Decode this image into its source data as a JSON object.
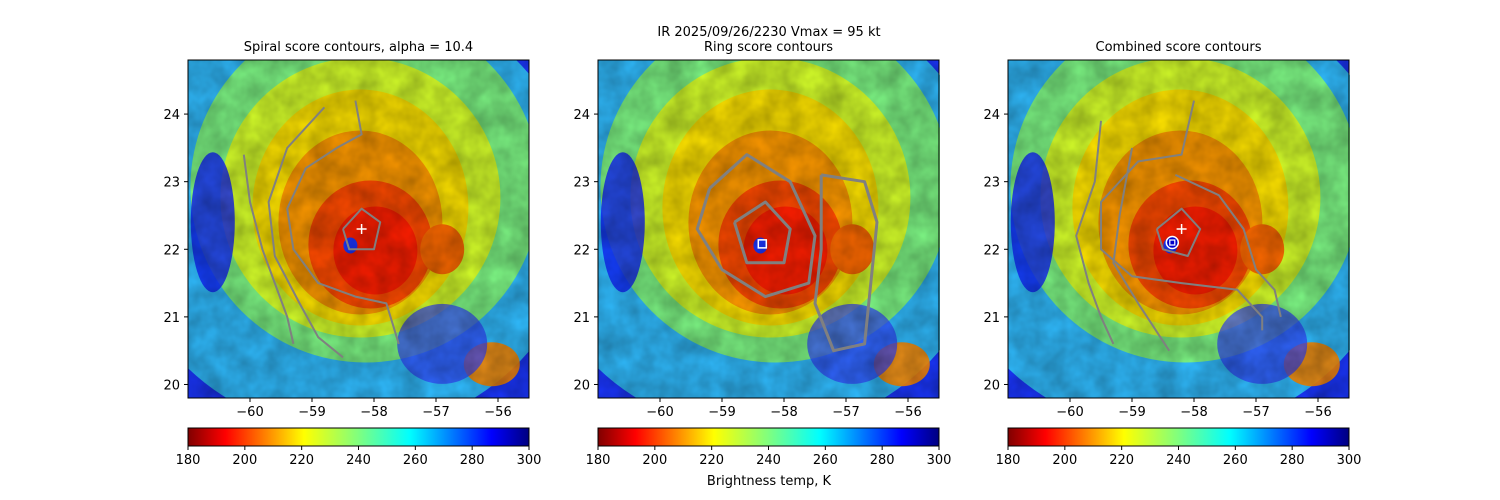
{
  "suptitle_line1": "IR  2025/09/26/2230    Vmax = 95 kt",
  "colorbar_label": "Brightness temp, K",
  "colors": {
    "contour": "#808080",
    "marker": "#ffffff",
    "circle_marker": "#ffffff",
    "circle_fill": "#0000cc"
  },
  "chart_data": [
    {
      "type": "heatmap",
      "title": "Spiral score contours, alpha = 10.4",
      "xlim": [
        -61.0,
        -55.5
      ],
      "ylim": [
        19.8,
        24.8
      ],
      "xticks": [
        -60,
        -59,
        -58,
        -57,
        -56
      ],
      "yticks": [
        20,
        21,
        22,
        23,
        24
      ],
      "xlabel": "",
      "ylabel": "",
      "colormap": "jet_r",
      "clim": [
        180,
        300
      ],
      "colorbar_ticks": [
        180,
        200,
        220,
        240,
        260,
        280,
        300
      ],
      "first_guess": {
        "lon": -58.2,
        "lat": 22.3,
        "marker": "+"
      },
      "contours": [
        [
          [
            -58.8,
            24.1
          ],
          [
            -59.4,
            23.5
          ],
          [
            -59.7,
            22.7
          ],
          [
            -59.6,
            21.9
          ],
          [
            -59.2,
            21.2
          ],
          [
            -58.9,
            20.7
          ],
          [
            -58.5,
            20.4
          ]
        ],
        [
          [
            -58.3,
            24.2
          ],
          [
            -58.2,
            23.7
          ],
          [
            -58.6,
            23.5
          ],
          [
            -59.1,
            23.2
          ],
          [
            -59.4,
            22.6
          ],
          [
            -59.3,
            22.0
          ],
          [
            -58.9,
            21.5
          ],
          [
            -58.3,
            21.3
          ],
          [
            -57.8,
            21.2
          ],
          [
            -57.6,
            20.6
          ]
        ],
        [
          [
            -60.1,
            23.4
          ],
          [
            -60.0,
            22.7
          ],
          [
            -59.8,
            22.0
          ],
          [
            -59.6,
            21.5
          ],
          [
            -59.4,
            21.0
          ],
          [
            -59.3,
            20.6
          ]
        ],
        [
          [
            -58.5,
            22.3
          ],
          [
            -58.2,
            22.6
          ],
          [
            -57.9,
            22.4
          ],
          [
            -58.0,
            22.0
          ],
          [
            -58.4,
            22.0
          ],
          [
            -58.5,
            22.3
          ]
        ]
      ]
    },
    {
      "type": "heatmap",
      "title": "Ring score contours",
      "xlim": [
        -61.0,
        -55.5
      ],
      "ylim": [
        19.8,
        24.8
      ],
      "xticks": [
        -60,
        -59,
        -58,
        -57,
        -56
      ],
      "yticks": [
        20,
        21,
        22,
        23,
        24
      ],
      "colormap": "jet_r",
      "clim": [
        180,
        300
      ],
      "colorbar_ticks": [
        180,
        200,
        220,
        240,
        260,
        280,
        300
      ],
      "ring_center": {
        "lon": -58.35,
        "lat": 22.08,
        "marker": "square"
      },
      "contours": [
        [
          [
            -59.2,
            22.9
          ],
          [
            -58.6,
            23.4
          ],
          [
            -57.9,
            23.0
          ],
          [
            -57.5,
            22.2
          ],
          [
            -57.6,
            21.5
          ],
          [
            -58.3,
            21.3
          ],
          [
            -59.0,
            21.7
          ],
          [
            -59.4,
            22.3
          ],
          [
            -59.2,
            22.9
          ]
        ],
        [
          [
            -58.8,
            22.4
          ],
          [
            -58.3,
            22.7
          ],
          [
            -57.9,
            22.3
          ],
          [
            -58.0,
            21.8
          ],
          [
            -58.6,
            21.8
          ],
          [
            -58.8,
            22.4
          ]
        ],
        [
          [
            -57.4,
            23.1
          ],
          [
            -56.7,
            23.0
          ],
          [
            -56.5,
            22.4
          ],
          [
            -56.6,
            21.5
          ],
          [
            -56.7,
            20.6
          ],
          [
            -57.2,
            20.5
          ],
          [
            -57.5,
            21.2
          ],
          [
            -57.4,
            22.0
          ],
          [
            -57.4,
            23.1
          ]
        ]
      ]
    },
    {
      "type": "heatmap",
      "title": "Combined score contours",
      "xlim": [
        -61.0,
        -55.5
      ],
      "ylim": [
        19.8,
        24.8
      ],
      "xticks": [
        -60,
        -59,
        -58,
        -57,
        -56
      ],
      "yticks": [
        20,
        21,
        22,
        23,
        24
      ],
      "colormap": "jet_r",
      "clim": [
        180,
        300
      ],
      "colorbar_ticks": [
        180,
        200,
        220,
        240,
        260,
        280,
        300
      ],
      "first_guess": {
        "lon": -58.2,
        "lat": 22.3,
        "marker": "+"
      },
      "best_center": {
        "lon": -58.35,
        "lat": 22.1,
        "marker": "circle"
      },
      "contours": [
        [
          [
            -58.0,
            24.2
          ],
          [
            -58.2,
            23.4
          ],
          [
            -58.9,
            23.3
          ],
          [
            -59.5,
            22.7
          ],
          [
            -59.5,
            22.0
          ],
          [
            -59.0,
            21.6
          ],
          [
            -58.2,
            21.5
          ],
          [
            -57.3,
            21.4
          ],
          [
            -56.9,
            21.0
          ],
          [
            -56.9,
            20.8
          ]
        ],
        [
          [
            -58.3,
            23.1
          ],
          [
            -57.6,
            22.8
          ],
          [
            -57.2,
            22.3
          ],
          [
            -57.0,
            21.7
          ],
          [
            -56.7,
            21.4
          ],
          [
            -56.6,
            21.0
          ]
        ],
        [
          [
            -59.5,
            23.9
          ],
          [
            -59.6,
            23.0
          ],
          [
            -59.9,
            22.2
          ],
          [
            -59.7,
            21.5
          ],
          [
            -59.5,
            21.0
          ],
          [
            -59.3,
            20.6
          ]
        ],
        [
          [
            -59.0,
            23.5
          ],
          [
            -59.2,
            22.5
          ],
          [
            -59.3,
            21.8
          ],
          [
            -58.9,
            21.2
          ],
          [
            -58.4,
            20.5
          ]
        ],
        [
          [
            -58.6,
            22.3
          ],
          [
            -58.2,
            22.6
          ],
          [
            -57.9,
            22.3
          ],
          [
            -58.1,
            21.9
          ],
          [
            -58.5,
            22.0
          ],
          [
            -58.6,
            22.3
          ]
        ]
      ]
    }
  ]
}
